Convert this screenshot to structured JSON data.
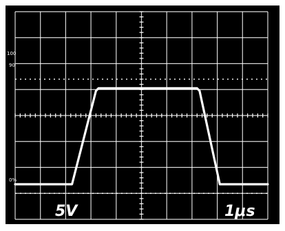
{
  "chart_data": {
    "type": "line",
    "x_divisions": 10,
    "y_divisions": 8,
    "x_range": [
      0,
      10
    ],
    "y_range": [
      0,
      8
    ],
    "grid": true,
    "grid_style": "oscilloscope graticule with dotted 0% and 100% reference lines",
    "ref_levels": {
      "zero_percent": 1.0,
      "ninety_percent": 5.0,
      "hundred_percent": 5.4
    },
    "scale_labels": {
      "top": "100",
      "ninety": "90",
      "zero": "0%"
    },
    "series": [
      {
        "x": [
          0.0,
          2.25,
          3.2,
          3.3,
          7.2,
          7.3,
          8.1,
          10.0
        ],
        "y": [
          1.35,
          1.35,
          4.95,
          5.05,
          5.05,
          4.95,
          1.35,
          1.35
        ]
      }
    ],
    "annotations": {
      "volts_per_div": "5V",
      "time_per_div": "1μs"
    },
    "colors": {
      "border": "#ffffff",
      "screen": "#000000",
      "grid": "#ffffff",
      "trace": "#ffffff"
    }
  }
}
